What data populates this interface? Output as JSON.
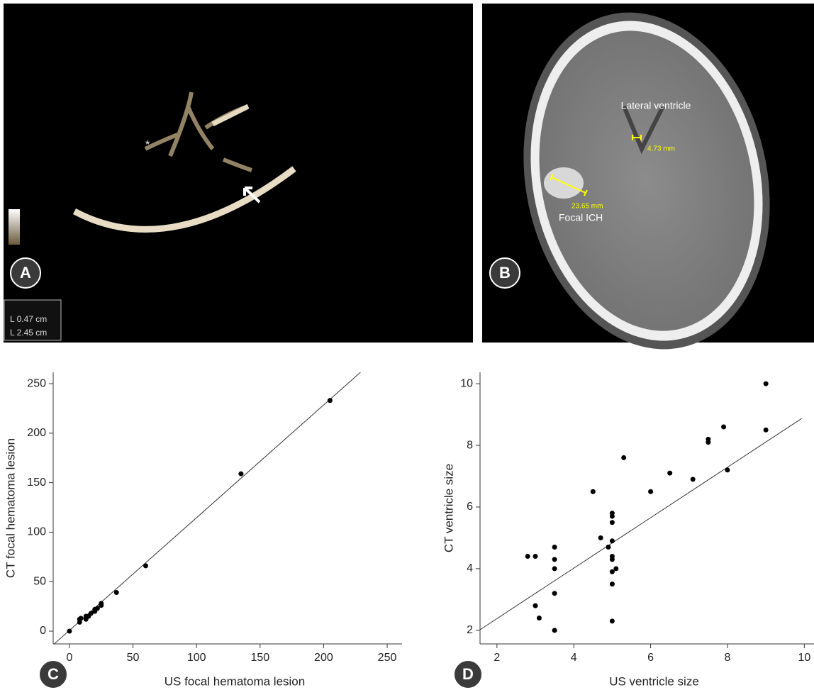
{
  "panels": {
    "A": {
      "label": "A",
      "marker": "*",
      "measurements": [
        "L 0.47 cm",
        "L 2.45 cm"
      ]
    },
    "B": {
      "label": "B",
      "ventricle_label": "Lateral ventricle",
      "ventricle_measure": "4.73 mm",
      "ich_measure": "23.65 mm",
      "ich_label": "Focal ICH"
    }
  },
  "chart_data": [
    {
      "type": "scatter",
      "panel_label": "C",
      "xlabel": "US focal hematoma lesion",
      "ylabel": "CT focal hematoma lesion",
      "color": "#000000",
      "x": [
        0,
        8,
        8,
        9,
        13,
        13,
        15,
        17,
        20,
        20,
        22,
        25,
        25,
        37,
        60,
        135,
        205
      ],
      "values": [
        0,
        9,
        12,
        13,
        12,
        15,
        15,
        18,
        20,
        22,
        23,
        26,
        28,
        39,
        66,
        159,
        233
      ],
      "trend_line": {
        "x": [
          -12,
          229
        ],
        "y": [
          -12.9,
          261.5
        ]
      },
      "xlim": [
        -12.8,
        261.7
      ],
      "ylim": [
        -12.9,
        261.5
      ],
      "xticks": [
        0,
        50,
        100,
        150,
        200,
        250
      ],
      "yticks": [
        0,
        50,
        100,
        150,
        200,
        250
      ]
    },
    {
      "type": "scatter",
      "panel_label": "D",
      "xlabel": "US ventricle size",
      "ylabel": "CT ventricle size",
      "color": "#000000",
      "x": [
        2.8,
        3.0,
        3.0,
        3.1,
        3.5,
        3.5,
        3.5,
        3.5,
        3.5,
        4.5,
        4.7,
        4.9,
        5.0,
        5.0,
        5.0,
        5.0,
        5.0,
        5.0,
        5.0,
        5.0,
        5.0,
        5.1,
        5.3,
        6.0,
        6.5,
        7.1,
        7.5,
        7.5,
        7.9,
        8.0,
        9.0,
        9.0
      ],
      "values": [
        4.4,
        4.4,
        2.8,
        2.4,
        4.7,
        4.3,
        4.0,
        3.2,
        2.0,
        6.5,
        5.0,
        4.7,
        5.8,
        5.7,
        5.5,
        4.9,
        4.4,
        4.3,
        3.9,
        3.5,
        2.3,
        4.0,
        7.6,
        6.5,
        7.1,
        6.9,
        8.2,
        8.1,
        8.6,
        7.2,
        10.0,
        8.5
      ],
      "trend_line": {
        "x": [
          1.56,
          9.93
        ],
        "y": [
          2.02,
          8.87
        ]
      },
      "xlim": [
        1.56,
        10.4
      ],
      "ylim": [
        1.56,
        10.37
      ],
      "xticks": [
        2,
        4,
        6,
        8,
        10
      ],
      "yticks": [
        2,
        4,
        6,
        8,
        10
      ]
    }
  ]
}
